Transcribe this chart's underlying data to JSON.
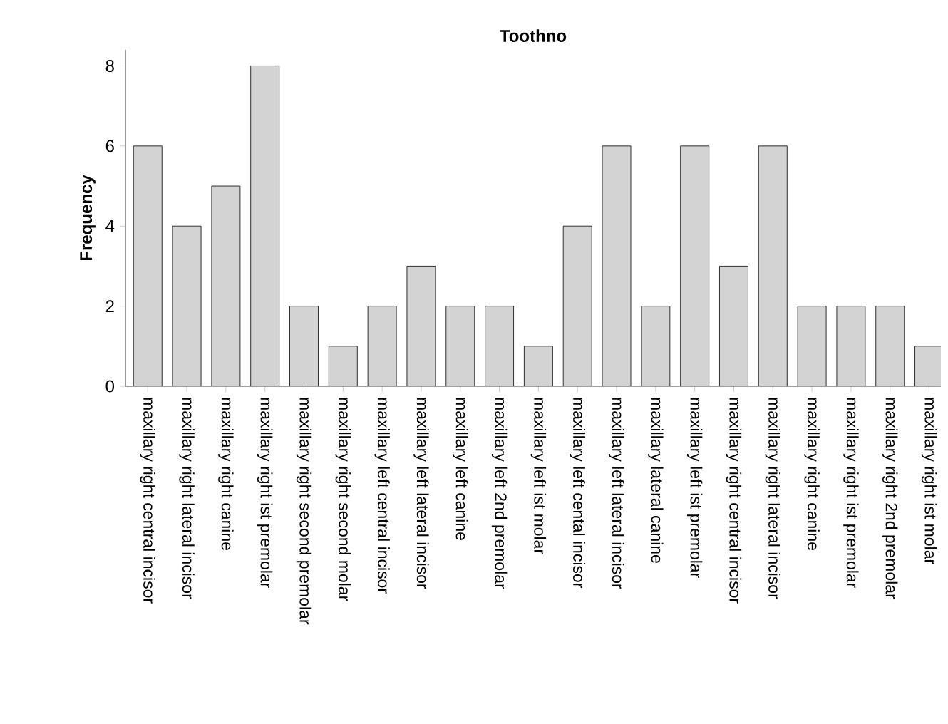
{
  "chart_data": {
    "type": "bar",
    "title": "Toothno",
    "ylabel": "Frequency",
    "categories": [
      "maxillary right central incisor",
      "maxillary right lateral incisor",
      "maxillary right canine",
      "maxillary right ist premolar",
      "maxillary right second premolar",
      "maxillary right second molar",
      "maxillary left central incisor",
      "maxillary left lateral incisor",
      "maxillary left canine",
      "maxillary left 2nd premolar",
      "maxillary left ist molar",
      "maxillary left cental incisor",
      "maxillary left lateral incisor",
      "maxillary lateral canine",
      "maxillary left ist premolar",
      "maxillary right central incisor",
      "maxillary right lateral incisor",
      "maxillary right canine",
      "maxillary right ist premolar",
      "maxillary right 2nd premolar",
      "maxillary right ist molar"
    ],
    "values": [
      6,
      4,
      5,
      8,
      2,
      1,
      2,
      3,
      2,
      2,
      1,
      4,
      6,
      2,
      6,
      3,
      6,
      2,
      2,
      2,
      1
    ],
    "color": "#d3d3d3",
    "ylim": [
      0,
      8.4
    ],
    "yticks": [
      0,
      2,
      4,
      6,
      8
    ],
    "grid": false
  }
}
